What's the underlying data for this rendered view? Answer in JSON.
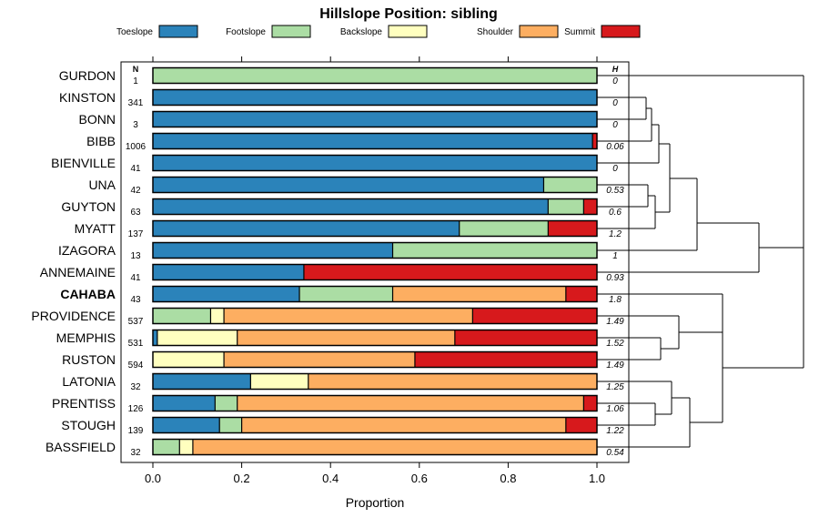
{
  "chart_data": {
    "type": "bar",
    "orientation": "horizontal",
    "stacked": true,
    "title": "Hillslope Position: sibling",
    "xlabel": "Proportion",
    "ylabel": "",
    "xlim": [
      0,
      1
    ],
    "x_ticks": [
      "0.0",
      "0.2",
      "0.4",
      "0.6",
      "0.8",
      "1.0"
    ],
    "n_header": "N",
    "h_header": "H",
    "legend_position": "top",
    "series": [
      {
        "name": "Toeslope",
        "color": "#2B83BA"
      },
      {
        "name": "Footslope",
        "color": "#ABDDA4"
      },
      {
        "name": "Backslope",
        "color": "#FFFFBF"
      },
      {
        "name": "Shoulder",
        "color": "#FDAE61"
      },
      {
        "name": "Summit",
        "color": "#D7191C"
      }
    ],
    "rows": [
      {
        "label": "GURDON",
        "n": "1",
        "h": "0",
        "values": [
          0,
          1,
          0,
          0,
          0
        ]
      },
      {
        "label": "KINSTON",
        "n": "341",
        "h": "0",
        "values": [
          1,
          0,
          0,
          0,
          0
        ]
      },
      {
        "label": "BONN",
        "n": "3",
        "h": "0",
        "values": [
          1,
          0,
          0,
          0,
          0
        ]
      },
      {
        "label": "BIBB",
        "n": "1006",
        "h": "0.06",
        "values": [
          0.99,
          0,
          0,
          0,
          0.01
        ]
      },
      {
        "label": "BIENVILLE",
        "n": "41",
        "h": "0",
        "values": [
          1,
          0,
          0,
          0,
          0
        ]
      },
      {
        "label": "UNA",
        "n": "42",
        "h": "0.53",
        "values": [
          0.88,
          0.12,
          0,
          0,
          0
        ]
      },
      {
        "label": "GUYTON",
        "n": "63",
        "h": "0.6",
        "values": [
          0.89,
          0.08,
          0,
          0,
          0.03
        ]
      },
      {
        "label": "MYATT",
        "n": "137",
        "h": "1.2",
        "values": [
          0.69,
          0.2,
          0,
          0,
          0.11
        ]
      },
      {
        "label": "IZAGORA",
        "n": "13",
        "h": "1",
        "values": [
          0.54,
          0.46,
          0,
          0,
          0
        ]
      },
      {
        "label": "ANNEMAINE",
        "n": "41",
        "h": "0.93",
        "values": [
          0.34,
          0,
          0,
          0,
          0.66
        ]
      },
      {
        "label": "CAHABA",
        "n": "43",
        "h": "1.8",
        "bold": true,
        "values": [
          0.33,
          0.21,
          0,
          0.39,
          0.07
        ]
      },
      {
        "label": "PROVIDENCE",
        "n": "537",
        "h": "1.49",
        "values": [
          0,
          0.13,
          0.03,
          0.56,
          0.28
        ]
      },
      {
        "label": "MEMPHIS",
        "n": "531",
        "h": "1.52",
        "values": [
          0.01,
          0,
          0.18,
          0.49,
          0.32
        ]
      },
      {
        "label": "RUSTON",
        "n": "594",
        "h": "1.49",
        "values": [
          0,
          0,
          0.16,
          0.43,
          0.41
        ]
      },
      {
        "label": "LATONIA",
        "n": "32",
        "h": "1.25",
        "values": [
          0.22,
          0,
          0.13,
          0.65,
          0
        ]
      },
      {
        "label": "PRENTISS",
        "n": "126",
        "h": "1.06",
        "values": [
          0.14,
          0.05,
          0,
          0.78,
          0.03
        ]
      },
      {
        "label": "STOUGH",
        "n": "139",
        "h": "1.22",
        "values": [
          0.15,
          0.05,
          0,
          0.73,
          0.07
        ]
      },
      {
        "label": "BASSFIELD",
        "n": "32",
        "h": "0.54",
        "values": [
          0,
          0.06,
          0.03,
          0.91,
          0
        ]
      }
    ]
  }
}
